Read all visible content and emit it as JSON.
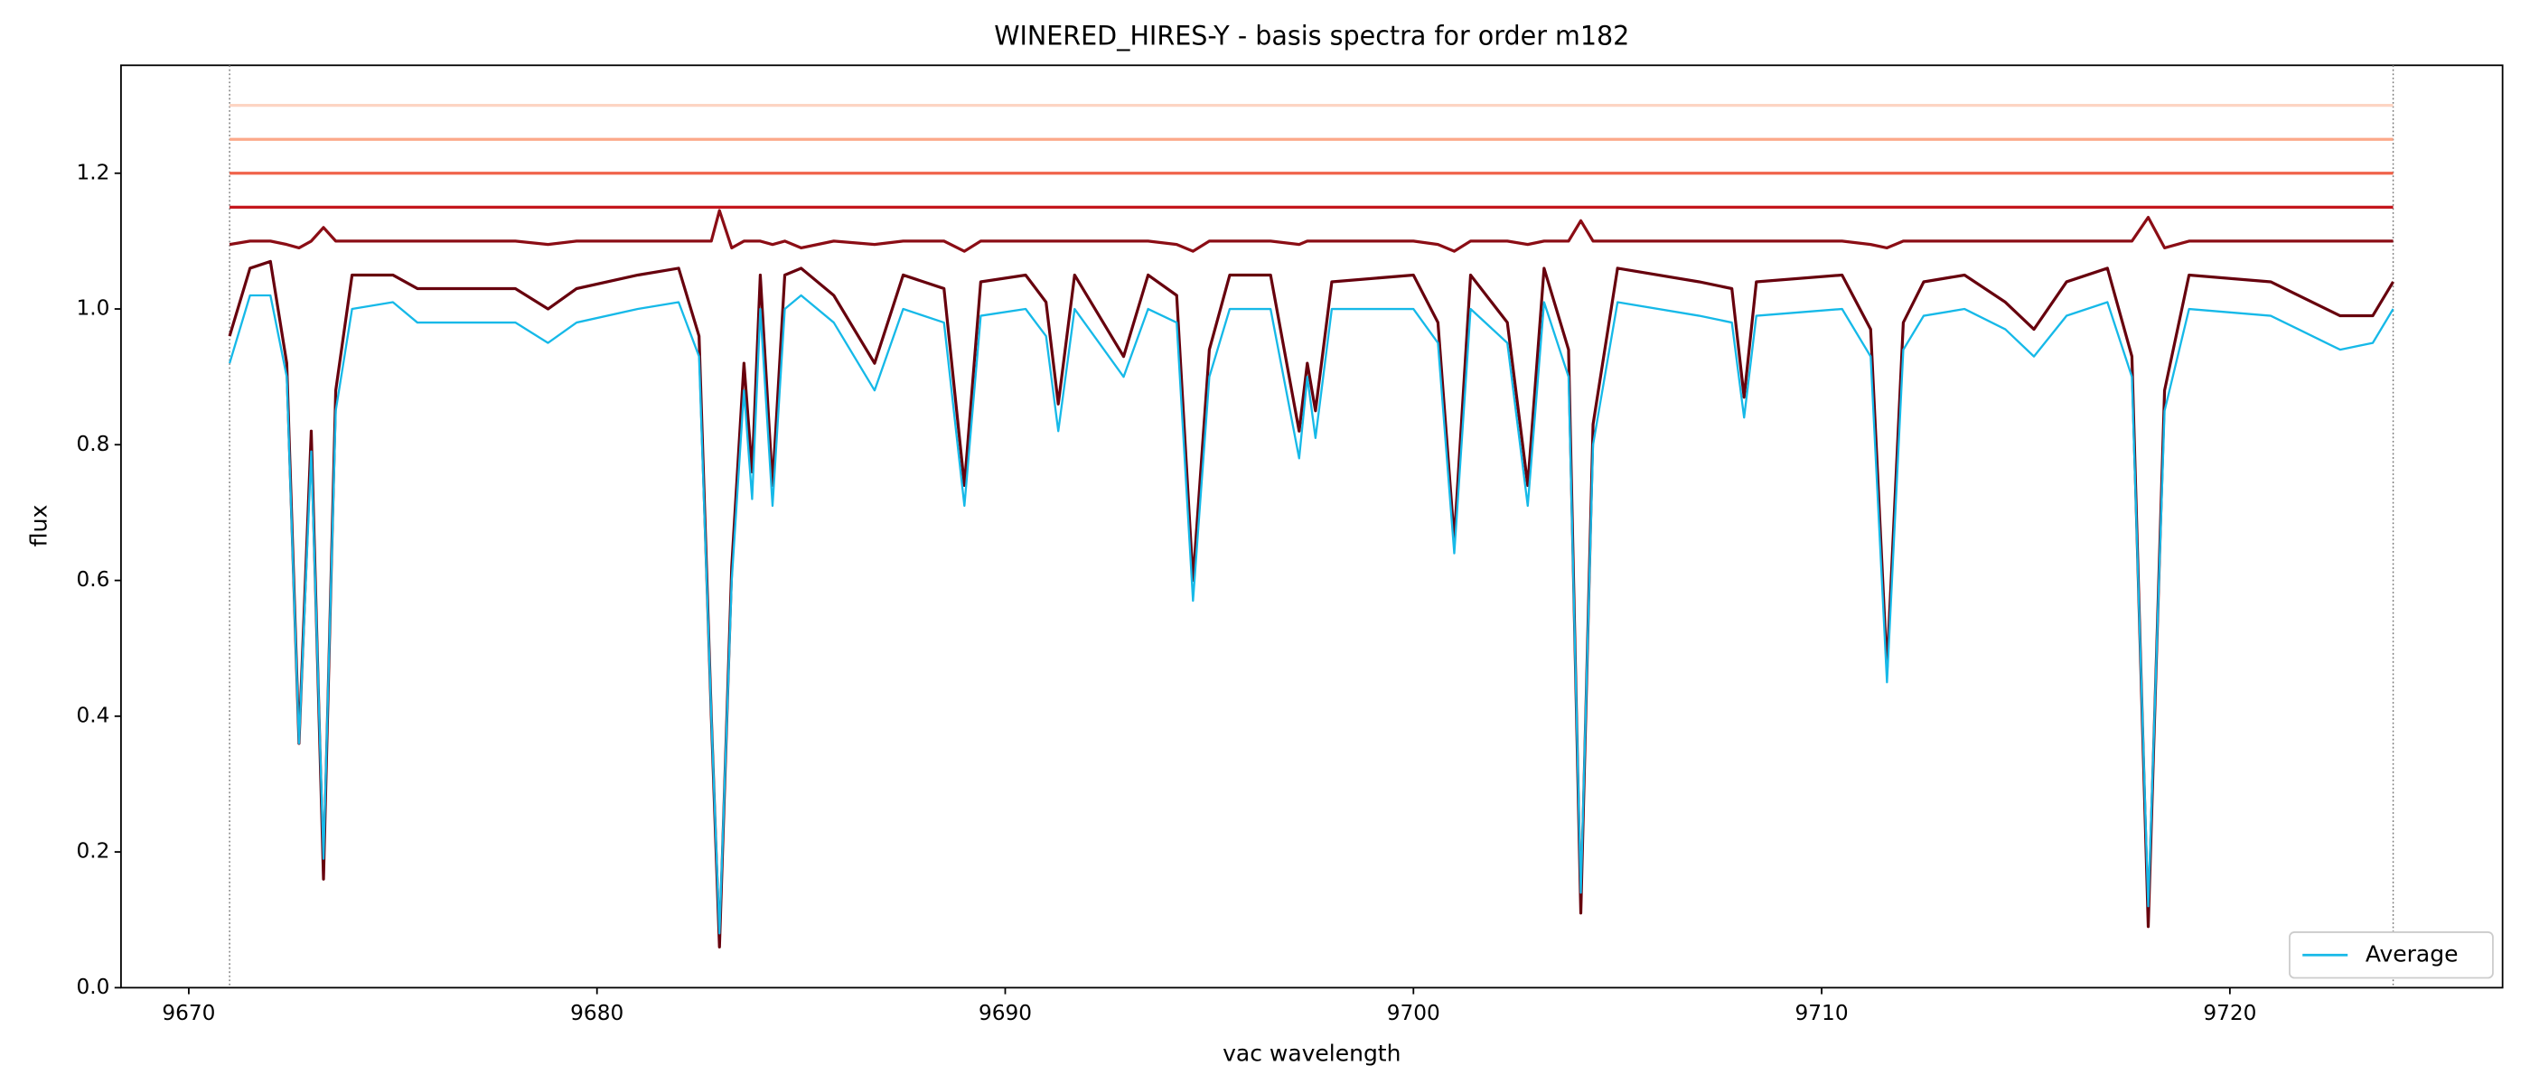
{
  "chart_data": {
    "type": "line",
    "title": "WINERED_HIRES-Y - basis spectra for order m182",
    "xlabel": "vac wavelength",
    "ylabel": "flux",
    "xlim": [
      9668.34,
      9726.68
    ],
    "ylim": [
      0,
      1.359
    ],
    "xticks": [
      9670,
      9680,
      9690,
      9700,
      9710,
      9720
    ],
    "yticks": [
      {
        "value": 0,
        "label": "0.0"
      },
      0.2,
      0.4,
      0.6,
      0.8,
      {
        "value": 1,
        "label": "1.0"
      },
      1.2
    ],
    "vlines": [
      9671.0,
      9724.0
    ],
    "legend_position": "lower right",
    "x": [
      9671.0,
      9671.5,
      9672.0,
      9672.4,
      9672.7,
      9673.0,
      9673.3,
      9673.6,
      9674.0,
      9675.0,
      9675.6,
      9677.0,
      9678.0,
      9678.8,
      9679.5,
      9681.0,
      9682.0,
      9682.5,
      9682.8,
      9683.0,
      9683.3,
      9683.6,
      9683.8,
      9684.0,
      9684.3,
      9684.6,
      9685.0,
      9685.8,
      9686.8,
      9687.5,
      9688.5,
      9689.0,
      9689.4,
      9690.5,
      9691.0,
      9691.3,
      9691.7,
      9692.9,
      9693.5,
      9694.2,
      9694.6,
      9695.0,
      9695.5,
      9696.5,
      9697.2,
      9697.4,
      9697.6,
      9698.0,
      9700.0,
      9700.6,
      9701.0,
      9701.4,
      9702.3,
      9702.8,
      9703.2,
      9703.8,
      9704.1,
      9704.4,
      9705.0,
      9707.0,
      9707.8,
      9708.1,
      9708.4,
      9710.5,
      9711.2,
      9711.6,
      9712.0,
      9712.5,
      9713.5,
      9714.5,
      9715.2,
      9716.0,
      9717.0,
      9717.6,
      9718.0,
      9718.4,
      9719.0,
      9721.0,
      9722.7,
      9723.5,
      9724.0
    ],
    "series": [
      {
        "color": "#fdd5c3",
        "x": [
          9671.0,
          9724.0
        ],
        "values": [
          1.3,
          1.3
        ]
      },
      {
        "color": "#fca98a",
        "x": [
          9671.0,
          9724.0
        ],
        "values": [
          1.25,
          1.25
        ]
      },
      {
        "color": "#f0634a",
        "x": [
          9671.0,
          9724.0
        ],
        "values": [
          1.2,
          1.2
        ]
      },
      {
        "color": "#c4161c",
        "x": [
          9671.0,
          9724.0
        ],
        "values": [
          1.15,
          1.15
        ]
      },
      {
        "color": "#8b0d15",
        "values": [
          1.095,
          1.1,
          1.1,
          1.095,
          1.09,
          1.1,
          1.12,
          1.1,
          1.1,
          1.1,
          1.1,
          1.1,
          1.1,
          1.095,
          1.1,
          1.1,
          1.1,
          1.1,
          1.1,
          1.145,
          1.09,
          1.1,
          1.1,
          1.1,
          1.095,
          1.1,
          1.09,
          1.1,
          1.095,
          1.1,
          1.1,
          1.085,
          1.1,
          1.1,
          1.1,
          1.1,
          1.1,
          1.1,
          1.1,
          1.095,
          1.085,
          1.1,
          1.1,
          1.1,
          1.095,
          1.1,
          1.1,
          1.1,
          1.1,
          1.095,
          1.085,
          1.1,
          1.1,
          1.095,
          1.1,
          1.1,
          1.13,
          1.1,
          1.1,
          1.1,
          1.1,
          1.1,
          1.1,
          1.1,
          1.095,
          1.09,
          1.1,
          1.1,
          1.1,
          1.1,
          1.1,
          1.1,
          1.1,
          1.1,
          1.135,
          1.09,
          1.1,
          1.1,
          1.1,
          1.1,
          1.1
        ]
      },
      {
        "color": "#67000d",
        "values": [
          0.96,
          1.06,
          1.07,
          0.92,
          0.36,
          0.82,
          0.16,
          0.88,
          1.05,
          1.05,
          1.03,
          1.03,
          1.03,
          1.0,
          1.03,
          1.05,
          1.06,
          0.96,
          0.4,
          0.06,
          0.62,
          0.92,
          0.76,
          1.05,
          0.74,
          1.05,
          1.06,
          1.02,
          0.92,
          1.05,
          1.03,
          0.74,
          1.04,
          1.05,
          1.01,
          0.86,
          1.05,
          0.93,
          1.05,
          1.02,
          0.6,
          0.94,
          1.05,
          1.05,
          0.82,
          0.92,
          0.85,
          1.04,
          1.05,
          0.98,
          0.66,
          1.05,
          0.98,
          0.74,
          1.06,
          0.94,
          0.11,
          0.83,
          1.06,
          1.04,
          1.03,
          0.87,
          1.04,
          1.05,
          0.97,
          0.47,
          0.98,
          1.04,
          1.05,
          1.01,
          0.97,
          1.04,
          1.06,
          0.93,
          0.09,
          0.88,
          1.05,
          1.04,
          0.99,
          0.99,
          1.04
        ]
      },
      {
        "name": "Average",
        "color": "#16b9e8",
        "values": [
          0.92,
          1.02,
          1.02,
          0.9,
          0.36,
          0.79,
          0.19,
          0.85,
          1.0,
          1.01,
          0.98,
          0.98,
          0.98,
          0.95,
          0.98,
          1.0,
          1.01,
          0.93,
          0.4,
          0.08,
          0.6,
          0.88,
          0.72,
          1.0,
          0.71,
          1.0,
          1.02,
          0.98,
          0.88,
          1.0,
          0.98,
          0.71,
          0.99,
          1.0,
          0.96,
          0.82,
          1.0,
          0.9,
          1.0,
          0.98,
          0.57,
          0.9,
          1.0,
          1.0,
          0.78,
          0.9,
          0.81,
          1.0,
          1.0,
          0.95,
          0.64,
          1.0,
          0.95,
          0.71,
          1.01,
          0.9,
          0.14,
          0.8,
          1.01,
          0.99,
          0.98,
          0.84,
          0.99,
          1.0,
          0.93,
          0.45,
          0.94,
          0.99,
          1.0,
          0.97,
          0.93,
          0.99,
          1.01,
          0.9,
          0.12,
          0.85,
          1.0,
          0.99,
          0.94,
          0.95,
          1.0
        ]
      }
    ]
  }
}
